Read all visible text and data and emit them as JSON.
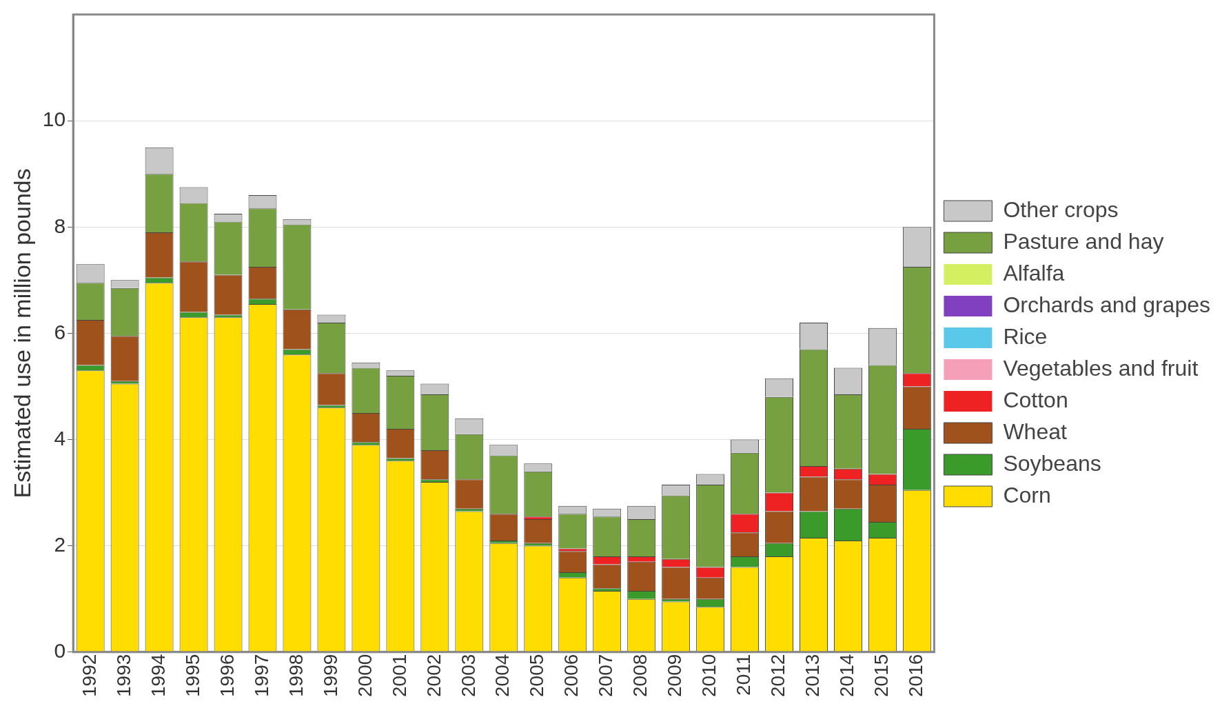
{
  "chart_data": {
    "type": "bar",
    "stacked": true,
    "ylabel": "Estimated use in million pounds",
    "categories": [
      "1992",
      "1993",
      "1994",
      "1995",
      "1996",
      "1997",
      "1998",
      "1999",
      "2000",
      "2001",
      "2002",
      "2003",
      "2004",
      "2005",
      "2006",
      "2007",
      "2008",
      "2009",
      "2010",
      "2011",
      "2012",
      "2013",
      "2014",
      "2015",
      "2016"
    ],
    "ylim": [
      0,
      12
    ],
    "yticks": [
      0,
      2,
      4,
      6,
      8,
      10
    ],
    "grid": "y",
    "legend": "right",
    "series": [
      {
        "name": "Corn",
        "color": "#ffdd00",
        "values": [
          5.3,
          5.05,
          6.95,
          6.3,
          6.3,
          6.55,
          5.6,
          4.6,
          3.9,
          3.6,
          3.2,
          2.65,
          2.05,
          2.0,
          1.4,
          1.15,
          1.0,
          0.95,
          0.85,
          1.6,
          1.8,
          2.15,
          2.1,
          2.15,
          3.05
        ]
      },
      {
        "name": "Soybeans",
        "color": "#3a9a2a",
        "values": [
          0.1,
          0.05,
          0.1,
          0.1,
          0.05,
          0.1,
          0.1,
          0.05,
          0.05,
          0.05,
          0.05,
          0.05,
          0.05,
          0.05,
          0.1,
          0.05,
          0.15,
          0.05,
          0.15,
          0.2,
          0.25,
          0.5,
          0.6,
          0.3,
          1.15
        ]
      },
      {
        "name": "Wheat",
        "color": "#a0521d",
        "values": [
          0.85,
          0.85,
          0.85,
          0.95,
          0.75,
          0.6,
          0.75,
          0.6,
          0.55,
          0.55,
          0.55,
          0.55,
          0.5,
          0.45,
          0.4,
          0.45,
          0.55,
          0.6,
          0.4,
          0.45,
          0.6,
          0.65,
          0.55,
          0.7,
          0.8
        ]
      },
      {
        "name": "Cotton",
        "color": "#ee2222",
        "values": [
          0,
          0,
          0,
          0,
          0,
          0,
          0,
          0,
          0,
          0,
          0,
          0,
          0,
          0.05,
          0.05,
          0.15,
          0.1,
          0.15,
          0.2,
          0.35,
          0.35,
          0.2,
          0.2,
          0.2,
          0.25
        ]
      },
      {
        "name": "Vegetables and fruit",
        "color": "#f5a0b8",
        "values": [
          0,
          0,
          0,
          0,
          0,
          0,
          0,
          0,
          0,
          0,
          0,
          0,
          0,
          0,
          0,
          0,
          0,
          0,
          0,
          0,
          0,
          0,
          0,
          0,
          0
        ]
      },
      {
        "name": "Rice",
        "color": "#5ac8e8",
        "values": [
          0,
          0,
          0,
          0,
          0,
          0,
          0,
          0,
          0,
          0,
          0,
          0,
          0,
          0,
          0,
          0,
          0,
          0,
          0,
          0,
          0,
          0,
          0,
          0,
          0
        ]
      },
      {
        "name": "Orchards and grapes",
        "color": "#8040c0",
        "values": [
          0,
          0,
          0,
          0,
          0,
          0,
          0,
          0,
          0,
          0,
          0,
          0,
          0,
          0,
          0,
          0,
          0,
          0,
          0,
          0,
          0,
          0,
          0,
          0,
          0
        ]
      },
      {
        "name": "Alfalfa",
        "color": "#d4f060",
        "values": [
          0,
          0,
          0,
          0,
          0,
          0,
          0,
          0,
          0,
          0,
          0,
          0,
          0,
          0,
          0,
          0,
          0,
          0,
          0,
          0,
          0,
          0,
          0,
          0,
          0
        ]
      },
      {
        "name": "Pasture and hay",
        "color": "#77a040",
        "values": [
          0.7,
          0.9,
          1.1,
          1.1,
          1.0,
          1.1,
          1.6,
          0.95,
          0.85,
          1.0,
          1.05,
          0.85,
          1.1,
          0.85,
          0.65,
          0.75,
          0.7,
          1.2,
          1.55,
          1.15,
          1.8,
          2.2,
          1.4,
          2.05,
          2.0
        ]
      },
      {
        "name": "Other crops",
        "color": "#c8c8c8",
        "values": [
          0.35,
          0.15,
          0.5,
          0.3,
          0.15,
          0.25,
          0.1,
          0.15,
          0.1,
          0.1,
          0.2,
          0.3,
          0.2,
          0.15,
          0.15,
          0.15,
          0.25,
          0.2,
          0.2,
          0.25,
          0.35,
          0.5,
          0.5,
          0.7,
          0.75
        ]
      }
    ]
  }
}
